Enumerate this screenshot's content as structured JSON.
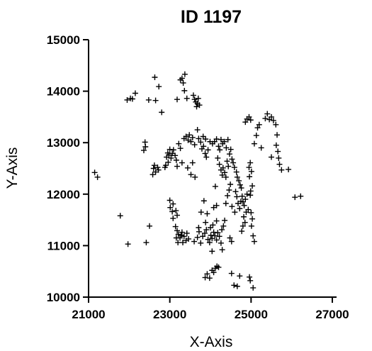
{
  "chart_data": {
    "type": "scatter",
    "title": "ID 1197",
    "xlabel": "X-Axis",
    "ylabel": "Y-Axis",
    "xlim": [
      21000,
      27000
    ],
    "ylim": [
      10000,
      15000
    ],
    "xticks": [
      21000,
      23000,
      25000,
      27000
    ],
    "yticks": [
      10000,
      11000,
      12000,
      13000,
      14000,
      15000
    ],
    "xtick_labels": [
      "21000",
      "23000",
      "25000",
      "27000"
    ],
    "ytick_labels": [
      "10000",
      "11000",
      "12000",
      "13000",
      "14000",
      "15000"
    ],
    "marker": "plus",
    "marker_color": "#000000",
    "grid": false,
    "legend": "none",
    "series": [
      {
        "points": [
          [
            21150,
            12420
          ],
          [
            21220,
            12330
          ],
          [
            21780,
            11580
          ],
          [
            21970,
            11030
          ],
          [
            21950,
            13830
          ],
          [
            22030,
            13860
          ],
          [
            22080,
            13850
          ],
          [
            22150,
            13960
          ],
          [
            22360,
            12850
          ],
          [
            22400,
            12920
          ],
          [
            22390,
            13010
          ],
          [
            22420,
            11060
          ],
          [
            22500,
            11380
          ],
          [
            22480,
            13830
          ],
          [
            22630,
            14270
          ],
          [
            22650,
            13820
          ],
          [
            22730,
            14090
          ],
          [
            22800,
            13590
          ],
          [
            22600,
            12500
          ],
          [
            22620,
            12560
          ],
          [
            22650,
            12430
          ],
          [
            22700,
            12520
          ],
          [
            22720,
            12470
          ],
          [
            22580,
            12380
          ],
          [
            22880,
            12520
          ],
          [
            22900,
            12560
          ],
          [
            22960,
            12620
          ],
          [
            22920,
            12720
          ],
          [
            22950,
            12800
          ],
          [
            22980,
            12760
          ],
          [
            23030,
            12700
          ],
          [
            23060,
            12790
          ],
          [
            23000,
            12870
          ],
          [
            23090,
            12860
          ],
          [
            23130,
            12750
          ],
          [
            23160,
            12660
          ],
          [
            23180,
            12540
          ],
          [
            23220,
            12980
          ],
          [
            23260,
            12890
          ],
          [
            23300,
            12610
          ],
          [
            23180,
            13840
          ],
          [
            23260,
            14220
          ],
          [
            23330,
            14160
          ],
          [
            23370,
            14330
          ],
          [
            23300,
            14250
          ],
          [
            23360,
            14010
          ],
          [
            23420,
            13860
          ],
          [
            23350,
            13080
          ],
          [
            23400,
            13120
          ],
          [
            23450,
            13050
          ],
          [
            23480,
            13150
          ],
          [
            23520,
            13020
          ],
          [
            23560,
            13100
          ],
          [
            23610,
            12960
          ],
          [
            23440,
            12510
          ],
          [
            23520,
            12380
          ],
          [
            23560,
            12610
          ],
          [
            23620,
            12330
          ],
          [
            23580,
            13920
          ],
          [
            23610,
            13840
          ],
          [
            23640,
            13790
          ],
          [
            23680,
            13760
          ],
          [
            23700,
            13860
          ],
          [
            23730,
            13730
          ],
          [
            23660,
            13700
          ],
          [
            23680,
            13250
          ],
          [
            23710,
            13080
          ],
          [
            23760,
            13010
          ],
          [
            23790,
            12880
          ],
          [
            23830,
            12930
          ],
          [
            23870,
            12790
          ],
          [
            23900,
            12720
          ],
          [
            23940,
            12860
          ],
          [
            23820,
            13120
          ],
          [
            23880,
            13070
          ],
          [
            23990,
            13020
          ],
          [
            24050,
            12980
          ],
          [
            24100,
            13020
          ],
          [
            24150,
            13070
          ],
          [
            24200,
            12930
          ],
          [
            24230,
            12860
          ],
          [
            24260,
            13060
          ],
          [
            24300,
            12980
          ],
          [
            24340,
            13020
          ],
          [
            24390,
            12900
          ],
          [
            24430,
            13060
          ],
          [
            24180,
            12700
          ],
          [
            24220,
            12580
          ],
          [
            24260,
            12470
          ],
          [
            24290,
            12370
          ],
          [
            24310,
            12510
          ],
          [
            24350,
            12420
          ],
          [
            24380,
            12330
          ],
          [
            24410,
            12640
          ],
          [
            24440,
            12540
          ],
          [
            24470,
            12780
          ],
          [
            24500,
            12870
          ],
          [
            24530,
            12680
          ],
          [
            24560,
            12610
          ],
          [
            24590,
            12520
          ],
          [
            24640,
            12430
          ],
          [
            24660,
            12330
          ],
          [
            24700,
            12260
          ],
          [
            24730,
            12180
          ],
          [
            24760,
            12120
          ],
          [
            24620,
            12050
          ],
          [
            24650,
            11950
          ],
          [
            24680,
            11820
          ],
          [
            24720,
            11720
          ],
          [
            24750,
            11860
          ],
          [
            24780,
            11960
          ],
          [
            24800,
            11850
          ],
          [
            24830,
            11780
          ],
          [
            24860,
            11900
          ],
          [
            24900,
            12000
          ],
          [
            24930,
            11700
          ],
          [
            24880,
            11650
          ],
          [
            24820,
            11560
          ],
          [
            24850,
            11450
          ],
          [
            24800,
            11380
          ],
          [
            24770,
            11280
          ],
          [
            24950,
            12520
          ],
          [
            24980,
            12610
          ],
          [
            25010,
            12440
          ],
          [
            24960,
            12340
          ],
          [
            25030,
            12160
          ],
          [
            24990,
            12060
          ],
          [
            24980,
            11980
          ],
          [
            25000,
            11640
          ],
          [
            25030,
            11520
          ],
          [
            25010,
            11380
          ],
          [
            25080,
            11080
          ],
          [
            25050,
            11190
          ],
          [
            24490,
            12190
          ],
          [
            24460,
            12080
          ],
          [
            24420,
            11970
          ],
          [
            24380,
            11820
          ],
          [
            24530,
            11760
          ],
          [
            24600,
            11650
          ],
          [
            24120,
            12150
          ],
          [
            24150,
            11780
          ],
          [
            24080,
            11740
          ],
          [
            23840,
            11870
          ],
          [
            23770,
            11650
          ],
          [
            23920,
            11620
          ],
          [
            23880,
            11450
          ],
          [
            23710,
            11350
          ],
          [
            23000,
            11880
          ],
          [
            23010,
            11740
          ],
          [
            23060,
            11660
          ],
          [
            23080,
            11810
          ],
          [
            23150,
            11680
          ],
          [
            23180,
            11590
          ],
          [
            23080,
            11530
          ],
          [
            23140,
            11370
          ],
          [
            23180,
            11290
          ],
          [
            23210,
            11220
          ],
          [
            23160,
            11150
          ],
          [
            23250,
            11150
          ],
          [
            23280,
            11200
          ],
          [
            23300,
            11260
          ],
          [
            23350,
            11180
          ],
          [
            23420,
            11240
          ],
          [
            23460,
            11130
          ],
          [
            23400,
            11100
          ],
          [
            23320,
            11060
          ],
          [
            23200,
            11060
          ],
          [
            23600,
            11080
          ],
          [
            23680,
            11160
          ],
          [
            23720,
            11270
          ],
          [
            23760,
            11050
          ],
          [
            23810,
            11180
          ],
          [
            23860,
            11240
          ],
          [
            23900,
            11310
          ],
          [
            23940,
            11120
          ],
          [
            23980,
            11060
          ],
          [
            24010,
            11200
          ],
          [
            24040,
            11140
          ],
          [
            24080,
            11260
          ],
          [
            24110,
            11190
          ],
          [
            24150,
            11110
          ],
          [
            24180,
            11250
          ],
          [
            24220,
            11180
          ],
          [
            24260,
            11050
          ],
          [
            24000,
            11350
          ],
          [
            24060,
            11400
          ],
          [
            24150,
            11480
          ],
          [
            24280,
            11310
          ],
          [
            24320,
            11380
          ],
          [
            24350,
            11490
          ],
          [
            24480,
            11150
          ],
          [
            24520,
            11080
          ],
          [
            24290,
            10920
          ],
          [
            24040,
            10890
          ],
          [
            23870,
            10380
          ],
          [
            23920,
            10450
          ],
          [
            23980,
            10370
          ],
          [
            24040,
            10520
          ],
          [
            24080,
            10480
          ],
          [
            24120,
            10560
          ],
          [
            24160,
            10600
          ],
          [
            24200,
            10580
          ],
          [
            24520,
            10460
          ],
          [
            24580,
            10230
          ],
          [
            24660,
            10210
          ],
          [
            24720,
            10410
          ],
          [
            24960,
            10390
          ],
          [
            24980,
            10320
          ],
          [
            25050,
            10180
          ],
          [
            24900,
            13460
          ],
          [
            24950,
            13500
          ],
          [
            24990,
            13440
          ],
          [
            24860,
            13400
          ],
          [
            25080,
            12980
          ],
          [
            25130,
            13140
          ],
          [
            25160,
            13290
          ],
          [
            25200,
            13350
          ],
          [
            25250,
            12900
          ],
          [
            25350,
            13470
          ],
          [
            25400,
            13560
          ],
          [
            25450,
            13450
          ],
          [
            25500,
            13500
          ],
          [
            25550,
            13430
          ],
          [
            25610,
            13350
          ],
          [
            25620,
            12950
          ],
          [
            25660,
            12830
          ],
          [
            25680,
            12700
          ],
          [
            25700,
            12580
          ],
          [
            25750,
            12470
          ],
          [
            25640,
            13150
          ],
          [
            25500,
            12720
          ],
          [
            25920,
            12480
          ],
          [
            26080,
            11940
          ],
          [
            26220,
            11960
          ]
        ]
      }
    ]
  }
}
